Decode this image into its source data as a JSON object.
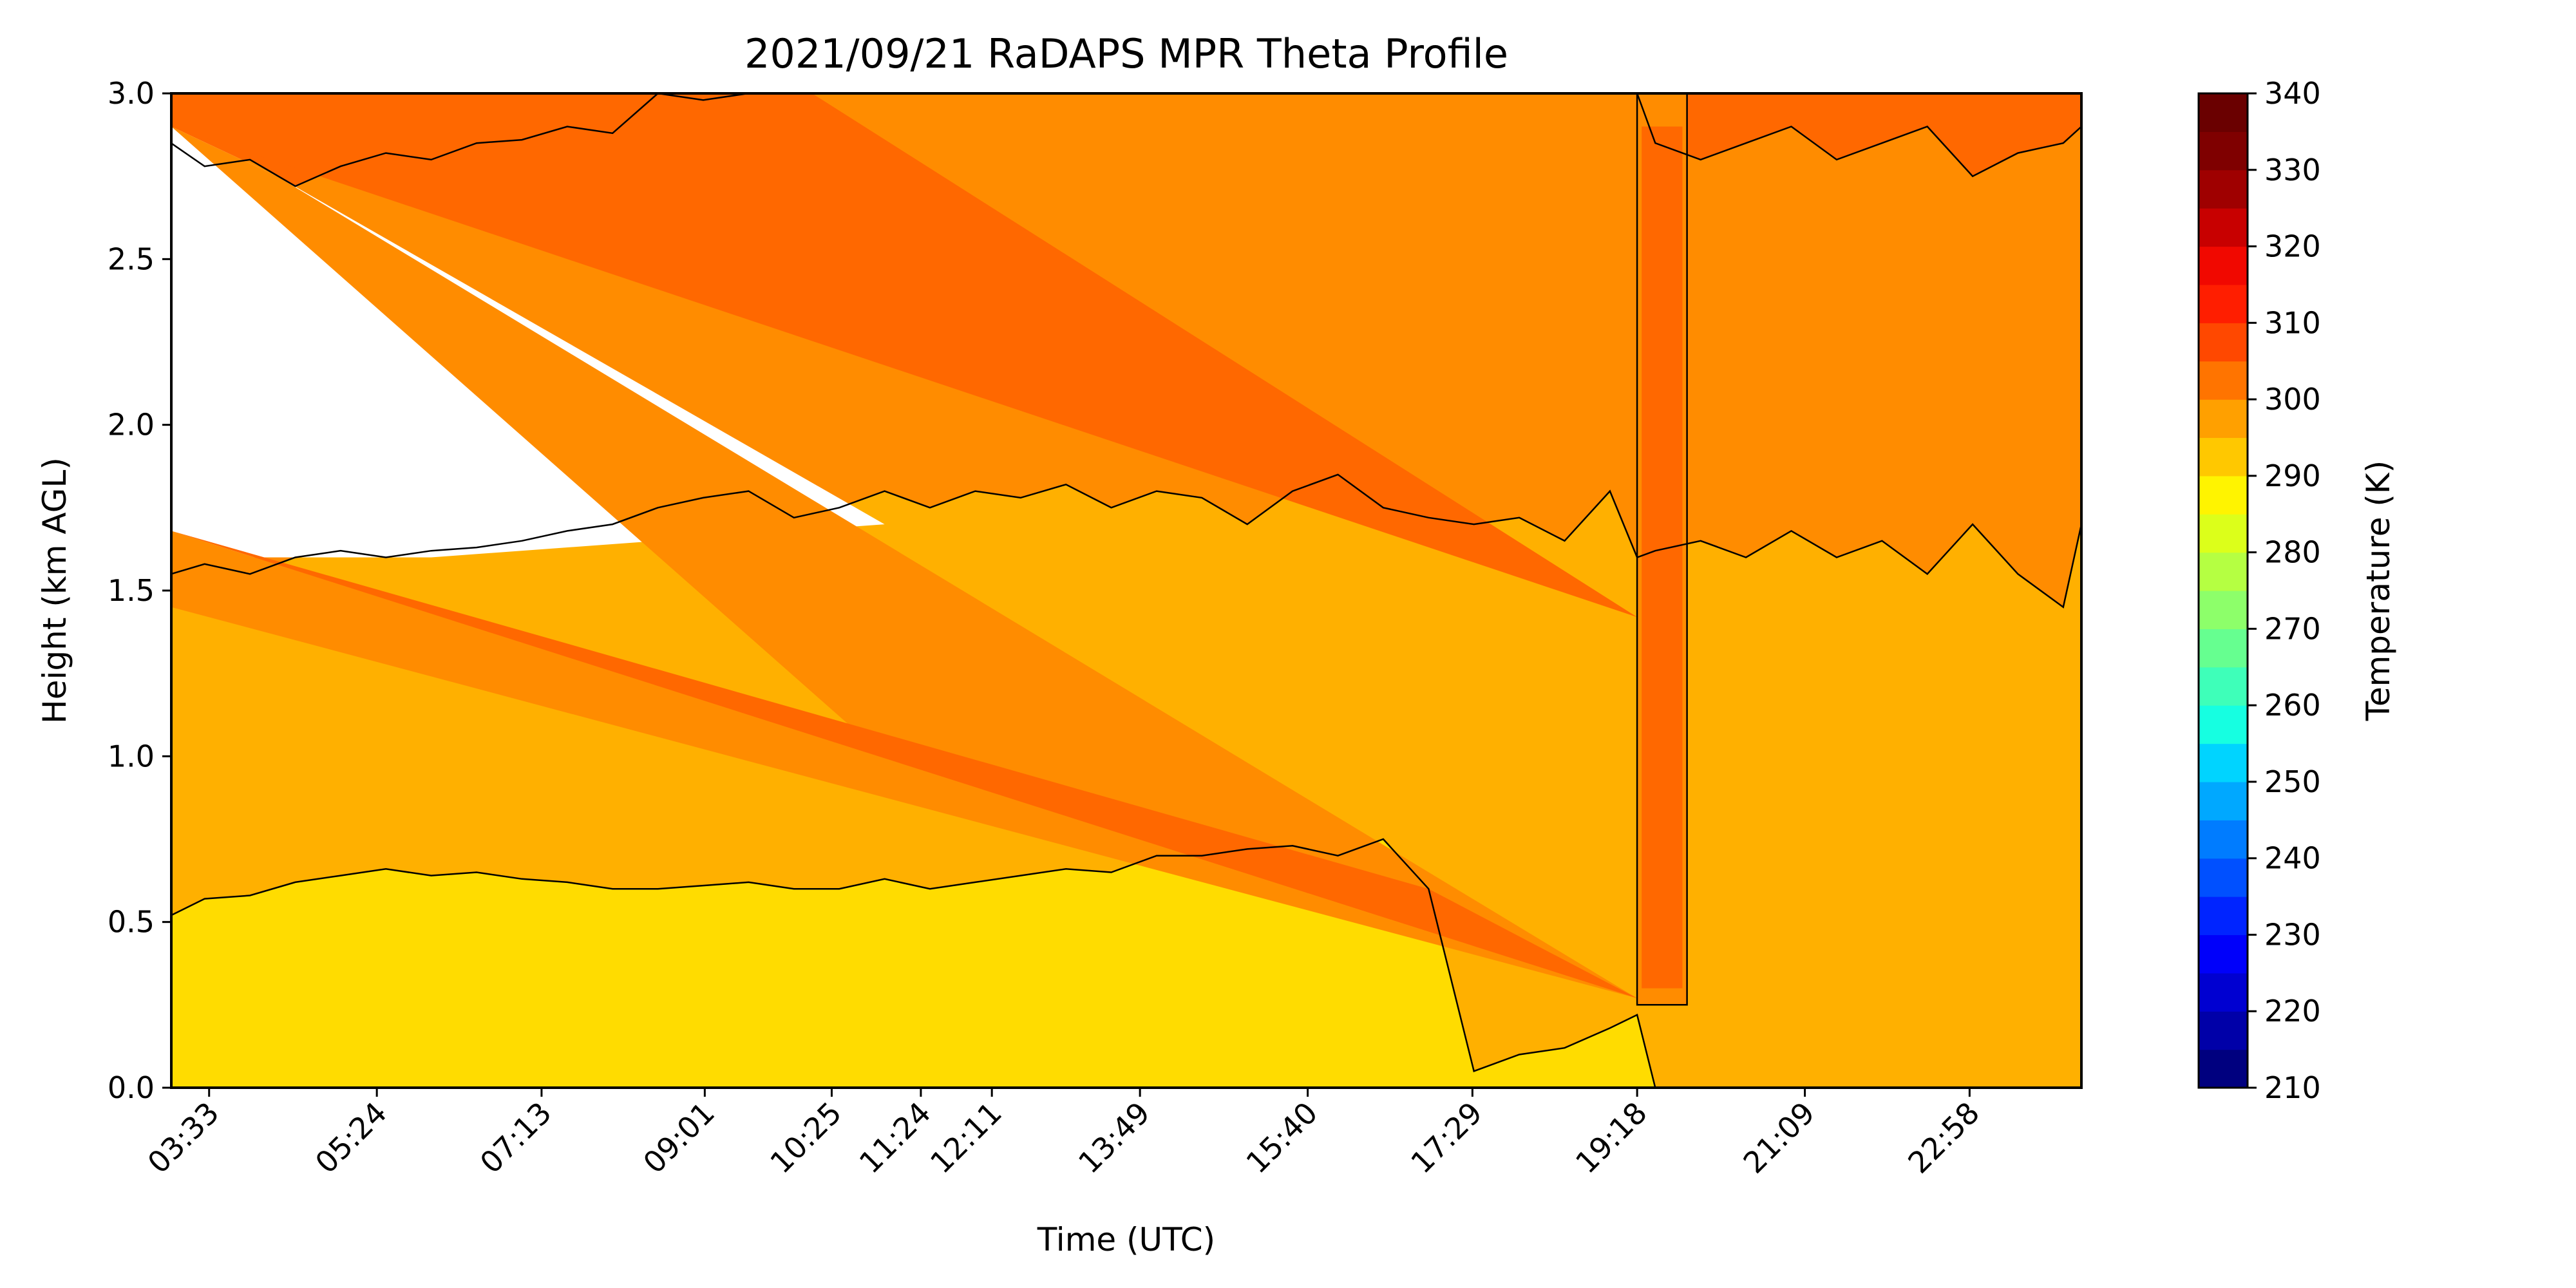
{
  "chart_data": {
    "type": "heatmap",
    "title": "2021/09/21 RaDAPS MPR Theta Profile",
    "xlabel": "Time (UTC)",
    "ylabel": "Height (km AGL)",
    "colorbar_label": "Temperature (K)",
    "ylim": [
      0,
      3
    ],
    "yticks": [
      "0.0",
      "0.5",
      "1.0",
      "1.5",
      "2.0",
      "2.5",
      "3.0"
    ],
    "xlim_hours": [
      3.133,
      24.2
    ],
    "xticks": [
      {
        "label": "03:33",
        "hour": 3.55
      },
      {
        "label": "05:24",
        "hour": 5.4
      },
      {
        "label": "07:13",
        "hour": 7.2167
      },
      {
        "label": "09:01",
        "hour": 9.0167
      },
      {
        "label": "10:25",
        "hour": 10.4167
      },
      {
        "label": "11:24",
        "hour": 11.4
      },
      {
        "label": "12:11",
        "hour": 12.1833
      },
      {
        "label": "13:49",
        "hour": 13.8167
      },
      {
        "label": "15:40",
        "hour": 15.6667
      },
      {
        "label": "17:29",
        "hour": 17.4833
      },
      {
        "label": "19:18",
        "hour": 19.3
      },
      {
        "label": "21:09",
        "hour": 21.15
      },
      {
        "label": "22:58",
        "hour": 22.9667
      }
    ],
    "colorbar": {
      "range": [
        210,
        340
      ],
      "step": 5,
      "ticks": [
        "210",
        "220",
        "230",
        "240",
        "250",
        "260",
        "270",
        "280",
        "290",
        "300",
        "310",
        "320",
        "330",
        "340"
      ],
      "colors": [
        "#00007f",
        "#0000a8",
        "#0000d1",
        "#0000fa",
        "#0024ff",
        "#0050ff",
        "#007cff",
        "#00a8ff",
        "#00d4ff",
        "#16ffe1",
        "#3effb9",
        "#66ff90",
        "#8dff6a",
        "#b5ff42",
        "#dcff1a",
        "#fff400",
        "#ffc800",
        "#ffa000",
        "#ff7400",
        "#ff4800",
        "#ff1e00",
        "#f10800",
        "#c80000",
        "#9f0000",
        "#7f0000",
        "#6a0000"
      ]
    },
    "contour_boundaries": {
      "hours": [
        3.13,
        3.5,
        4.0,
        4.5,
        5.0,
        5.5,
        6.0,
        6.5,
        7.0,
        7.5,
        8.0,
        8.5,
        9.0,
        9.5,
        10.0,
        10.5,
        11.0,
        11.5,
        12.0,
        12.5,
        13.0,
        13.5,
        14.0,
        14.5,
        15.0,
        15.5,
        16.0,
        16.5,
        17.0,
        17.5,
        18.0,
        18.5,
        19.0,
        19.3,
        19.5,
        20.0,
        20.5,
        21.0,
        21.5,
        22.0,
        22.5,
        23.0,
        23.5,
        24.0,
        24.2
      ],
      "level_300_km": [
        0.52,
        0.57,
        0.58,
        0.62,
        0.64,
        0.66,
        0.64,
        0.65,
        0.63,
        0.62,
        0.6,
        0.6,
        0.61,
        0.62,
        0.6,
        0.6,
        0.63,
        0.6,
        0.62,
        0.64,
        0.66,
        0.65,
        0.7,
        0.7,
        0.72,
        0.73,
        0.7,
        0.75,
        0.6,
        0.05,
        0.1,
        0.12,
        0.18,
        0.22,
        0.0,
        0.0,
        0.0,
        0.0,
        0.0,
        0.0,
        0.0,
        0.0,
        0.0,
        0.0,
        0.0
      ],
      "level_310_km": [
        1.55,
        1.58,
        1.55,
        1.6,
        1.62,
        1.6,
        1.62,
        1.63,
        1.65,
        1.68,
        1.7,
        1.75,
        1.78,
        1.8,
        1.72,
        1.75,
        1.8,
        1.75,
        1.8,
        1.78,
        1.82,
        1.75,
        1.8,
        1.78,
        1.7,
        1.8,
        1.85,
        1.75,
        1.72,
        1.7,
        1.72,
        1.65,
        1.8,
        1.6,
        1.62,
        1.65,
        1.6,
        1.68,
        1.6,
        1.65,
        1.55,
        1.7,
        1.55,
        1.45,
        1.7
      ],
      "level_320_km": [
        2.85,
        2.78,
        2.8,
        2.72,
        2.78,
        2.82,
        2.8,
        2.85,
        2.86,
        2.9,
        2.88,
        3.0,
        2.98,
        3.0,
        3.0,
        3.0,
        3.0,
        3.0,
        3.0,
        3.0,
        3.0,
        3.0,
        3.0,
        3.0,
        3.0,
        3.0,
        3.0,
        3.0,
        3.0,
        3.0,
        3.0,
        3.0,
        3.0,
        3.0,
        2.85,
        2.8,
        2.85,
        2.9,
        2.8,
        2.85,
        2.9,
        2.75,
        2.82,
        2.85,
        2.9
      ]
    },
    "interpolation_gap_wedges": [
      {
        "shade": "#ff6800",
        "points": [
          [
            3.133,
            2.9
          ],
          [
            19.3,
            1.42
          ],
          [
            10.2,
            3.0
          ],
          [
            3.133,
            3.0
          ]
        ]
      },
      {
        "shade": "#ff8c00",
        "points": [
          [
            4.3,
            2.75
          ],
          [
            19.3,
            0.27
          ],
          [
            11.0,
            1.0
          ],
          [
            3.133,
            2.9
          ]
        ]
      },
      {
        "shade": "#ff8c00",
        "points": [
          [
            3.133,
            1.68
          ],
          [
            19.3,
            0.27
          ],
          [
            3.133,
            1.45
          ]
        ]
      },
      {
        "shade": "#ff6800",
        "points": [
          [
            3.133,
            1.68
          ],
          [
            19.3,
            0.27
          ],
          [
            17.0,
            0.6
          ]
        ]
      }
    ],
    "white_gap_top_left": [
      [
        3.133,
        2.9
      ],
      [
        4.3,
        2.75
      ],
      [
        11.0,
        1.7
      ],
      [
        6.0,
        1.6
      ],
      [
        3.133,
        1.6
      ]
    ],
    "white_gap_top_strip": [
      [
        3.133,
        3.0
      ],
      [
        10.2,
        3.0
      ],
      [
        8.0,
        2.85
      ],
      [
        3.133,
        2.9
      ]
    ],
    "vertical_plume": {
      "hours": [
        19.3,
        19.35,
        19.8,
        19.85
      ],
      "bottom_km": 0.25
    },
    "field_shades": {
      "below_300": "#ffdc00",
      "300_310": "#ffb000",
      "310_320": "#ff8c00",
      "above_320": "#ff6800"
    },
    "grid": false
  }
}
